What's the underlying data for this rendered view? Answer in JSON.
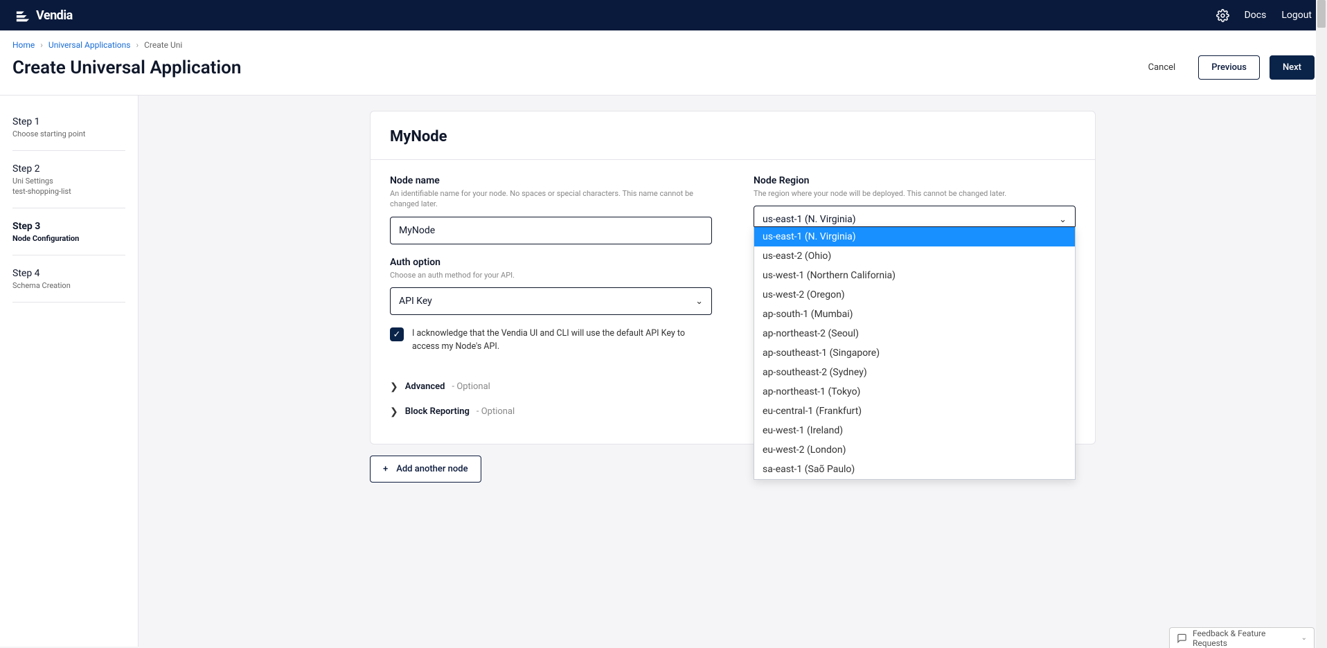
{
  "brand": "Vendia",
  "topbar": {
    "docs": "Docs",
    "logout": "Logout"
  },
  "breadcrumb": {
    "home": "Home",
    "apps": "Universal Applications",
    "current": "Create Uni"
  },
  "page_title": "Create Universal Application",
  "actions": {
    "cancel": "Cancel",
    "previous": "Previous",
    "next": "Next"
  },
  "steps": [
    {
      "title": "Step 1",
      "sub": "Choose starting point"
    },
    {
      "title": "Step 2",
      "sub": "Uni Settings\ntest-shopping-list"
    },
    {
      "title": "Step 3",
      "sub": "Node Configuration"
    },
    {
      "title": "Step 4",
      "sub": "Schema Creation"
    }
  ],
  "node": {
    "title": "MyNode",
    "name_label": "Node name",
    "name_help": "An identifiable name for your node. No spaces or special characters. This name cannot be changed later.",
    "name_value": "MyNode",
    "auth_label": "Auth option",
    "auth_help": "Choose an auth method for your API.",
    "auth_value": "API Key",
    "ack_text": "I acknowledge that the Vendia UI and CLI will use the default API Key to access my Node's API.",
    "advanced": "Advanced",
    "block": "Block Reporting",
    "optional": "- Optional",
    "region_label": "Node Region",
    "region_help": "The region where your node will be deployed. This cannot be changed later.",
    "region_value": "us-east-1 (N. Virginia)",
    "region_options": [
      "us-east-1 (N. Virginia)",
      "us-east-2 (Ohio)",
      "us-west-1 (Northern California)",
      "us-west-2 (Oregon)",
      "ap-south-1 (Mumbai)",
      "ap-northeast-2 (Seoul)",
      "ap-southeast-1 (Singapore)",
      "ap-southeast-2 (Sydney)",
      "ap-northeast-1 (Tokyo)",
      "eu-central-1 (Frankfurt)",
      "eu-west-1 (Ireland)",
      "eu-west-2 (London)",
      "sa-east-1 (Saõ Paulo)"
    ]
  },
  "add_node": "Add another node",
  "feedback": "Feedback & Feature Requests"
}
